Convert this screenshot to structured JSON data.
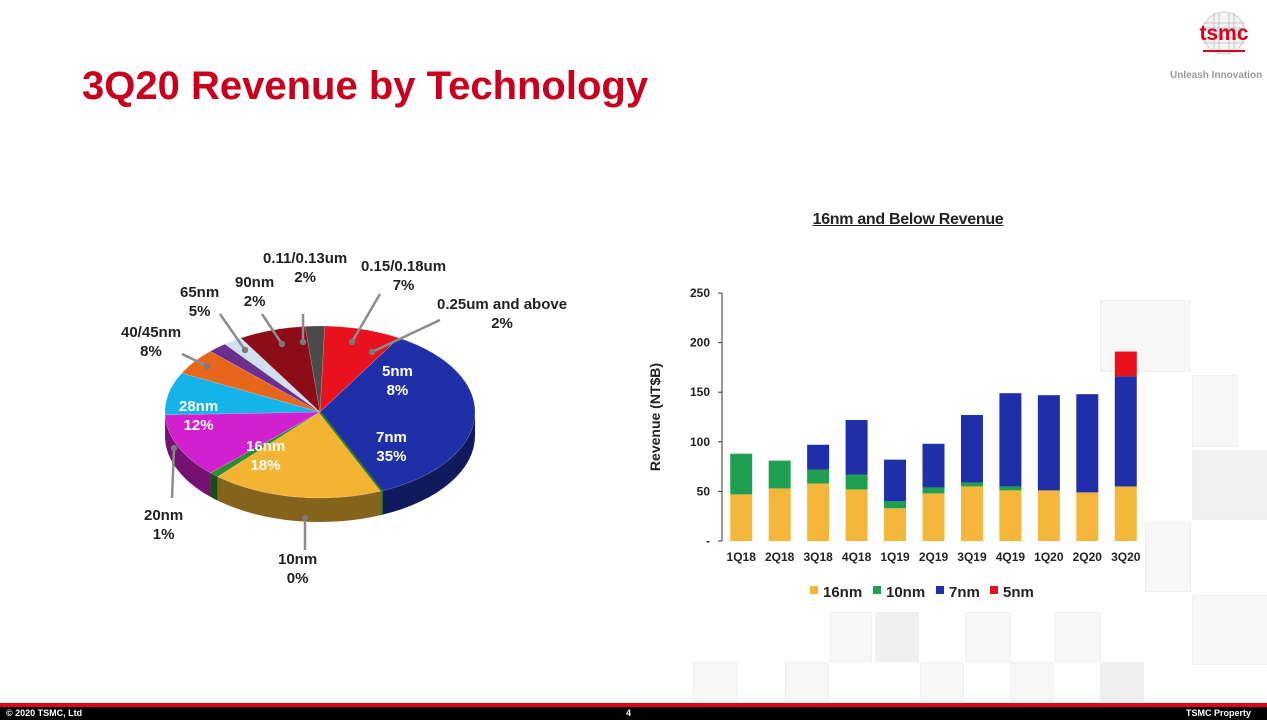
{
  "slide": {
    "title": "3Q20 Revenue by Technology",
    "logo_text": "tsmc",
    "tagline": "Unleash Innovation",
    "footer_left": "© 2020 TSMC, Ltd",
    "page_number": "4",
    "footer_right": "TSMC Property"
  },
  "colors": {
    "title": "#c8001e",
    "16nm": "#f4b73c",
    "10nm": "#1fa050",
    "7nm": "#1f2fa8",
    "5nm": "#e8111e"
  },
  "chart_data": [
    {
      "type": "pie",
      "slices": [
        {
          "label": "5nm",
          "value": 8,
          "display": "8%",
          "color": "#e8111e"
        },
        {
          "label": "7nm",
          "value": 35,
          "display": "35%",
          "color": "#1f2fa8"
        },
        {
          "label": "10nm",
          "value": 0,
          "display": "0%",
          "color": "#2b7a2b"
        },
        {
          "label": "16nm",
          "value": 18,
          "display": "18%",
          "color": "#f2b431"
        },
        {
          "label": "20nm",
          "value": 1,
          "display": "1%",
          "color": "#2e8b2e"
        },
        {
          "label": "28nm",
          "value": 12,
          "display": "12%",
          "color": "#d21fcf"
        },
        {
          "label": "40/45nm",
          "value": 8,
          "display": "8%",
          "color": "#14b4ea"
        },
        {
          "label": "65nm",
          "value": 5,
          "display": "5%",
          "color": "#e8661c"
        },
        {
          "label": "90nm",
          "value": 2,
          "display": "2%",
          "color": "#6b2f8f"
        },
        {
          "label": "0.11/0.13um",
          "value": 2,
          "display": "2%",
          "color": "#cfe0f0"
        },
        {
          "label": "0.15/0.18um",
          "value": 7,
          "display": "7%",
          "color": "#8c0d17"
        },
        {
          "label": "0.25um and above",
          "value": 2,
          "display": "2%",
          "color": "#4a4a4a"
        }
      ]
    },
    {
      "type": "bar",
      "stacked": true,
      "title": "16nm and Below Revenue",
      "ylabel": "Revenue (NT$B)",
      "ylim": [
        0,
        250
      ],
      "yticks": [
        "-",
        "50",
        "100",
        "150",
        "200",
        "250"
      ],
      "categories": [
        "1Q18",
        "2Q18",
        "3Q18",
        "4Q18",
        "1Q19",
        "2Q19",
        "3Q19",
        "4Q19",
        "1Q20",
        "2Q20",
        "3Q20"
      ],
      "series": [
        {
          "name": "16nm",
          "color": "#f4b73c",
          "values": [
            47,
            53,
            58,
            52,
            33,
            48,
            55,
            51,
            51,
            49,
            55
          ]
        },
        {
          "name": "10nm",
          "color": "#1fa050",
          "values": [
            41,
            28,
            14,
            15,
            7,
            6,
            4,
            4,
            0,
            0,
            0
          ]
        },
        {
          "name": "7nm",
          "color": "#1f2fa8",
          "values": [
            0,
            0,
            25,
            55,
            42,
            44,
            68,
            94,
            96,
            99,
            111
          ]
        },
        {
          "name": "5nm",
          "color": "#e8111e",
          "values": [
            0,
            0,
            0,
            0,
            0,
            0,
            0,
            0,
            0,
            0,
            25
          ]
        }
      ],
      "legend": "bottom",
      "grid": false
    }
  ]
}
